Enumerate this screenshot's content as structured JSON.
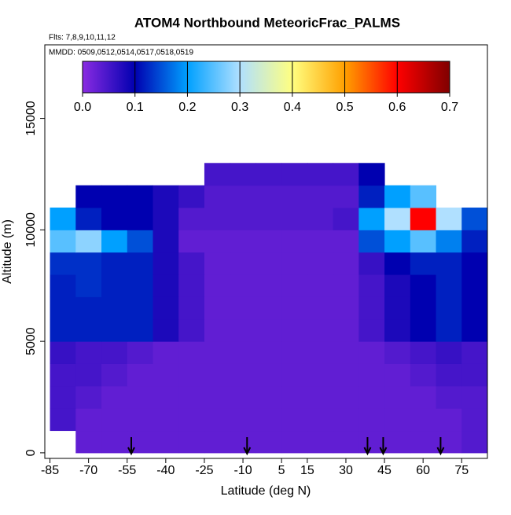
{
  "chart_data": {
    "type": "heatmap",
    "title": "ATOM4 Northbound MeteoricFrac_PALMS",
    "subtitle": "Flts: 7,8,9,10,11,12",
    "annotation": "MMDD: 0509,0512,0514,0517,0518,0519",
    "xlabel": "Latitude (deg N)",
    "ylabel": "Altitude (m)",
    "xlim": [
      -87,
      85
    ],
    "ylim": [
      -250,
      18300
    ],
    "xticks": [
      -85,
      -70,
      -55,
      -40,
      -25,
      -10,
      5,
      15,
      30,
      45,
      60,
      75
    ],
    "yticks": [
      0,
      5000,
      10000,
      15000
    ],
    "x_bins": [
      -85,
      -75,
      -65,
      -55,
      -45,
      -35,
      -25,
      -15,
      -5,
      5,
      15,
      25,
      35,
      45,
      55,
      65,
      75,
      85
    ],
    "y_bins": [
      0,
      1000,
      2000,
      3000,
      4000,
      5000,
      6000,
      7000,
      8000,
      9000,
      10000,
      11000,
      12000,
      13000
    ],
    "values": [
      [
        null,
        0.03,
        0.03,
        0.03,
        0.03,
        0.03,
        0.03,
        0.03,
        0.03,
        0.03,
        0.03,
        0.03,
        0.03,
        0.03,
        0.03,
        0.03,
        0.04
      ],
      [
        0.05,
        0.03,
        0.03,
        0.03,
        0.03,
        0.03,
        0.03,
        0.03,
        0.03,
        0.03,
        0.03,
        0.03,
        0.03,
        0.03,
        0.03,
        0.03,
        0.04
      ],
      [
        0.05,
        0.04,
        0.03,
        0.03,
        0.03,
        0.03,
        0.03,
        0.03,
        0.03,
        0.03,
        0.03,
        0.03,
        0.03,
        0.03,
        0.03,
        0.04,
        0.04
      ],
      [
        0.05,
        0.05,
        0.04,
        0.03,
        0.03,
        0.03,
        0.03,
        0.03,
        0.03,
        0.03,
        0.03,
        0.03,
        0.03,
        0.03,
        0.04,
        0.05,
        0.05
      ],
      [
        0.06,
        0.05,
        0.05,
        0.04,
        0.03,
        0.03,
        0.03,
        0.03,
        0.03,
        0.03,
        0.03,
        0.03,
        0.03,
        0.04,
        0.05,
        0.06,
        0.05
      ],
      [
        0.12,
        0.12,
        0.12,
        0.12,
        0.08,
        0.05,
        0.03,
        0.03,
        0.03,
        0.03,
        0.03,
        0.03,
        0.05,
        0.08,
        0.1,
        0.12,
        0.1
      ],
      [
        0.12,
        0.12,
        0.12,
        0.12,
        0.08,
        0.05,
        0.03,
        0.03,
        0.03,
        0.03,
        0.03,
        0.03,
        0.05,
        0.08,
        0.1,
        0.12,
        0.1
      ],
      [
        0.12,
        0.13,
        0.12,
        0.12,
        0.08,
        0.05,
        0.03,
        0.03,
        0.03,
        0.03,
        0.03,
        0.03,
        0.05,
        0.08,
        0.1,
        0.12,
        0.1
      ],
      [
        0.13,
        0.13,
        0.12,
        0.12,
        0.08,
        0.05,
        0.03,
        0.03,
        0.03,
        0.03,
        0.03,
        0.03,
        0.06,
        0.1,
        0.12,
        0.12,
        0.1
      ],
      [
        0.25,
        0.28,
        0.2,
        0.15,
        0.08,
        0.03,
        0.03,
        0.03,
        0.03,
        0.03,
        0.03,
        0.03,
        0.15,
        0.2,
        0.25,
        0.18,
        0.12
      ],
      [
        0.2,
        0.12,
        0.1,
        0.1,
        0.08,
        0.04,
        0.04,
        0.04,
        0.04,
        0.04,
        0.04,
        0.05,
        0.2,
        0.3,
        0.6,
        0.3,
        0.15
      ],
      [
        null,
        0.1,
        0.1,
        0.1,
        0.08,
        0.06,
        0.04,
        0.04,
        0.04,
        0.04,
        0.04,
        0.04,
        0.12,
        0.2,
        0.25,
        null,
        null
      ],
      [
        null,
        null,
        null,
        null,
        null,
        null,
        0.05,
        0.05,
        0.05,
        0.05,
        0.05,
        0.05,
        0.1,
        null,
        null,
        null,
        null
      ]
    ],
    "colorbar": {
      "lim": [
        0,
        0.7
      ],
      "ticks": [
        {
          "value": 0,
          "label": "0.0"
        },
        0.1,
        0.2,
        0.3,
        0.4,
        0.5,
        0.6,
        0.7
      ],
      "colors": [
        "#8a2be2",
        "#0000b0",
        "#00a0ff",
        "#b0e0ff",
        "#ffff80",
        "#ffa000",
        "#ff0000",
        "#800000"
      ]
    },
    "arrow_x": [
      -53.4,
      -8.4,
      38.4,
      44.5,
      66.8
    ]
  }
}
